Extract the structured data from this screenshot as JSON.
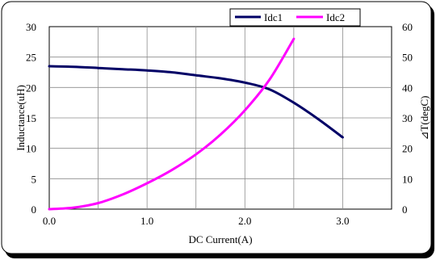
{
  "chart_data": {
    "type": "line",
    "xlabel": "DC   Current(A)",
    "ylabel_left": "Inductance(uH)",
    "ylabel_right": "⊿T(degC)",
    "xlim": [
      0,
      3.5
    ],
    "ylim_left": [
      0,
      30
    ],
    "ylim_right": [
      0,
      60
    ],
    "x_ticks": [
      "0.0",
      "1.0",
      "2.0",
      "3.0"
    ],
    "y_ticks_left": [
      "0",
      "5",
      "10",
      "15",
      "20",
      "25",
      "30"
    ],
    "y_ticks_right": [
      "0",
      "10",
      "20",
      "30",
      "40",
      "50",
      "60"
    ],
    "grid": true,
    "legend_placement": "top-right",
    "series": [
      {
        "name": "Idc1",
        "axis": "left",
        "color": "#000066",
        "x": [
          0.0,
          0.25,
          0.5,
          0.75,
          1.0,
          1.25,
          1.5,
          1.75,
          2.0,
          2.25,
          2.5,
          2.75,
          3.0
        ],
        "y": [
          23.5,
          23.4,
          23.2,
          23.0,
          22.8,
          22.5,
          22.0,
          21.5,
          20.8,
          19.7,
          17.5,
          14.8,
          11.8
        ]
      },
      {
        "name": "Idc2",
        "axis": "right",
        "color": "#ff00ff",
        "x": [
          0.0,
          0.25,
          0.5,
          0.75,
          1.0,
          1.25,
          1.5,
          1.75,
          2.0,
          2.25,
          2.5
        ],
        "y": [
          0.0,
          0.5,
          2.0,
          4.8,
          8.5,
          12.8,
          18.0,
          24.5,
          32.5,
          42.5,
          56.0
        ]
      }
    ]
  }
}
